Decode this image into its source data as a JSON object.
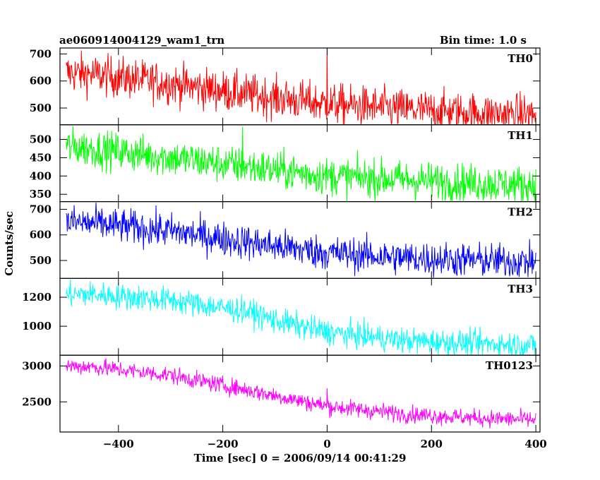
{
  "header": {
    "title": "ae060914004129_wam1_trn",
    "bin_time": "Bin time: 1.0 s"
  },
  "axes": {
    "ylabel": "Counts/sec",
    "xlabel": "Time [sec] 0 = 2006/09/14 00:41:29",
    "x_range": [
      -512,
      408
    ],
    "x_ticks": [
      -400,
      -200,
      0,
      200,
      400
    ],
    "x_tick_labels": [
      "−400",
      "−200",
      "0",
      "200",
      "400"
    ]
  },
  "chart_data": {
    "type": "line",
    "x_start": -500,
    "x_end": 400,
    "bin_seconds": 1.0,
    "series": [
      {
        "name": "TH0",
        "color": "#ff0000",
        "ylim": [
          438,
          722
        ],
        "yticks": [
          500,
          600,
          700
        ],
        "trend_x": [
          -500,
          -450,
          -300,
          -150,
          0,
          150,
          300,
          400
        ],
        "trend_y": [
          630,
          625,
          590,
          550,
          515,
          495,
          480,
          475
        ],
        "noise": 38,
        "spikes": [
          {
            "x": 0,
            "y": 722
          }
        ]
      },
      {
        "name": "TH1",
        "color": "#00ff00",
        "ylim": [
          330,
          540
        ],
        "yticks": [
          350,
          400,
          450,
          500
        ],
        "trend_x": [
          -500,
          -450,
          -300,
          -150,
          0,
          150,
          300,
          400
        ],
        "trend_y": [
          480,
          475,
          450,
          425,
          400,
          390,
          380,
          375
        ],
        "noise": 26,
        "spikes": [
          {
            "x": -162,
            "y": 535
          }
        ]
      },
      {
        "name": "TH2",
        "color": "#0000ff",
        "ylim": [
          430,
          730
        ],
        "yticks": [
          500,
          600,
          700
        ],
        "trend_x": [
          -500,
          -450,
          -300,
          -150,
          0,
          150,
          300,
          400
        ],
        "trend_y": [
          650,
          645,
          615,
          570,
          530,
          510,
          500,
          495
        ],
        "noise": 34,
        "spikes": []
      },
      {
        "name": "TH3",
        "color": "#00ffff",
        "ylim": [
          800,
          1330
        ],
        "yticks": [
          1000,
          1200
        ],
        "trend_x": [
          -500,
          -450,
          -300,
          -150,
          -100,
          0,
          150,
          300,
          400
        ],
        "trend_y": [
          1220,
          1220,
          1180,
          1100,
          1040,
          960,
          900,
          880,
          870
        ],
        "noise": 45,
        "spikes": []
      },
      {
        "name": "TH0123",
        "color": "#ff00ff",
        "ylim": [
          2080,
          3150
        ],
        "yticks": [
          2500,
          3000
        ],
        "trend_x": [
          -500,
          -450,
          -300,
          -150,
          0,
          150,
          300,
          400
        ],
        "trend_y": [
          3000,
          2990,
          2870,
          2660,
          2440,
          2330,
          2270,
          2250
        ],
        "noise": 60,
        "spikes": [
          {
            "x": 0,
            "y": 2690
          }
        ]
      }
    ]
  }
}
